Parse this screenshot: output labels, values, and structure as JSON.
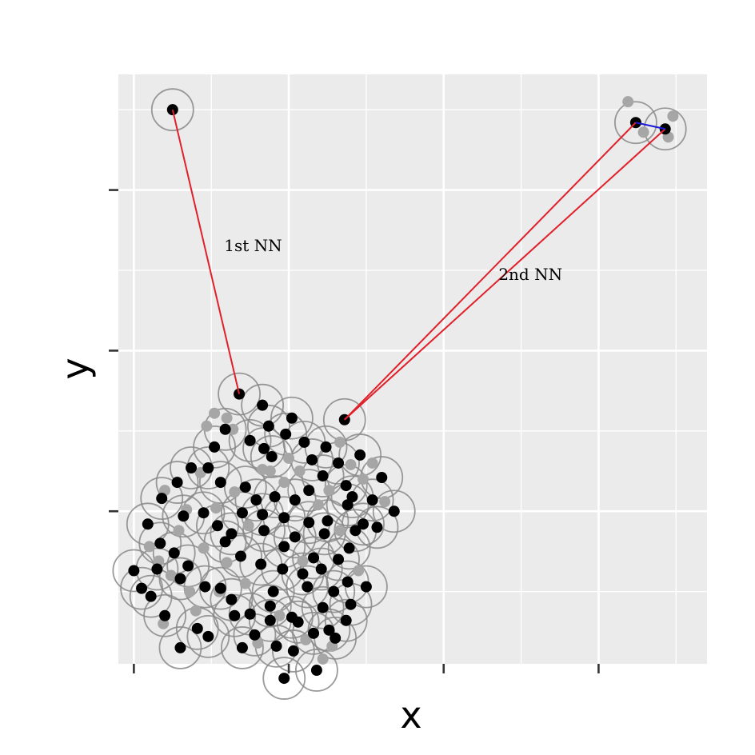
{
  "chart_data": {
    "type": "scatter",
    "xlabel": "x",
    "ylabel": "y",
    "xlim": [
      -0.1,
      3.7
    ],
    "ylim": [
      -0.95,
      2.72
    ],
    "grid": true,
    "legend": "none",
    "annotations": [
      {
        "label": "1st NN",
        "x": 0.77,
        "y": 1.62
      },
      {
        "label": "2nd NN",
        "x": 2.56,
        "y": 1.44
      }
    ],
    "highlight_links": [
      {
        "from": [
          0.25,
          2.5
        ],
        "to": [
          0.68,
          0.73
        ],
        "color": "#e0202a"
      },
      {
        "from": [
          1.36,
          0.57
        ],
        "to": [
          3.24,
          2.42
        ],
        "color": "#e0202a"
      },
      {
        "from": [
          1.36,
          0.57
        ],
        "to": [
          3.43,
          2.38
        ],
        "color": "#e0202a"
      },
      {
        "from": [
          3.24,
          2.42
        ],
        "to": [
          3.43,
          2.38
        ],
        "color": "#1a1ad6"
      }
    ],
    "series": [
      {
        "role": "black points",
        "points": [
          [
            0.25,
            2.5
          ],
          [
            0.68,
            0.73
          ],
          [
            0.83,
            0.66
          ],
          [
            1.02,
            0.58
          ],
          [
            0.87,
            0.53
          ],
          [
            0.98,
            0.48
          ],
          [
            1.36,
            0.57
          ],
          [
            0.52,
            0.4
          ],
          [
            0.59,
            0.51
          ],
          [
            0.75,
            0.44
          ],
          [
            0.84,
            0.39
          ],
          [
            0.89,
            0.34
          ],
          [
            1.1,
            0.43
          ],
          [
            1.24,
            0.4
          ],
          [
            1.15,
            0.32
          ],
          [
            1.32,
            0.3
          ],
          [
            1.46,
            0.35
          ],
          [
            1.6,
            0.21
          ],
          [
            1.68,
            0.0
          ],
          [
            0.18,
            0.08
          ],
          [
            0.28,
            0.18
          ],
          [
            0.37,
            0.27
          ],
          [
            0.48,
            0.27
          ],
          [
            0.56,
            0.18
          ],
          [
            0.72,
            0.15
          ],
          [
            0.79,
            0.07
          ],
          [
            0.91,
            0.09
          ],
          [
            1.04,
            0.07
          ],
          [
            1.13,
            0.13
          ],
          [
            1.22,
            0.22
          ],
          [
            1.37,
            0.16
          ],
          [
            1.41,
            0.09
          ],
          [
            1.54,
            0.07
          ],
          [
            0.09,
            -0.08
          ],
          [
            0.17,
            -0.2
          ],
          [
            0.32,
            -0.03
          ],
          [
            0.45,
            -0.01
          ],
          [
            0.54,
            -0.09
          ],
          [
            0.63,
            -0.14
          ],
          [
            0.7,
            -0.01
          ],
          [
            0.83,
            -0.02
          ],
          [
            0.97,
            -0.04
          ],
          [
            1.13,
            -0.07
          ],
          [
            1.25,
            -0.06
          ],
          [
            1.38,
            0.04
          ],
          [
            1.48,
            -0.08
          ],
          [
            1.57,
            -0.1
          ],
          [
            0.15,
            -0.36
          ],
          [
            0.26,
            -0.26
          ],
          [
            0.35,
            -0.34
          ],
          [
            0.59,
            -0.19
          ],
          [
            0.69,
            -0.28
          ],
          [
            0.84,
            -0.12
          ],
          [
            0.97,
            -0.22
          ],
          [
            1.04,
            -0.16
          ],
          [
            1.16,
            -0.29
          ],
          [
            1.23,
            -0.14
          ],
          [
            1.32,
            -0.3
          ],
          [
            1.39,
            -0.23
          ],
          [
            1.43,
            -0.12
          ],
          [
            0.0,
            -0.37
          ],
          [
            0.05,
            -0.48
          ],
          [
            0.11,
            -0.53
          ],
          [
            0.2,
            -0.65
          ],
          [
            0.3,
            -0.42
          ],
          [
            0.46,
            -0.47
          ],
          [
            0.56,
            -0.48
          ],
          [
            0.63,
            -0.55
          ],
          [
            0.75,
            -0.64
          ],
          [
            0.88,
            -0.59
          ],
          [
            1.02,
            -0.66
          ],
          [
            1.12,
            -0.47
          ],
          [
            1.22,
            -0.6
          ],
          [
            1.29,
            -0.5
          ],
          [
            1.37,
            -0.68
          ],
          [
            1.4,
            -0.58
          ],
          [
            0.41,
            -0.73
          ],
          [
            0.78,
            -0.77
          ],
          [
            0.92,
            -0.84
          ],
          [
            0.7,
            -0.85
          ],
          [
            0.97,
            -1.04
          ],
          [
            1.03,
            -0.87
          ],
          [
            1.16,
            -0.76
          ],
          [
            1.26,
            -0.74
          ],
          [
            1.38,
            -0.44
          ],
          [
            0.82,
            -0.33
          ],
          [
            0.96,
            -0.36
          ],
          [
            1.09,
            -0.39
          ],
          [
            0.9,
            -0.5
          ],
          [
            1.21,
            -0.36
          ],
          [
            0.65,
            -0.65
          ],
          [
            0.48,
            -0.78
          ],
          [
            1.5,
            -0.47
          ],
          [
            0.3,
            -0.85
          ],
          [
            1.18,
            -0.99
          ],
          [
            0.88,
            -0.68
          ],
          [
            1.3,
            -0.79
          ],
          [
            1.06,
            -0.69
          ],
          [
            3.24,
            2.42
          ],
          [
            3.43,
            2.38
          ]
        ]
      },
      {
        "role": "grey points",
        "points": [
          [
            3.19,
            2.55
          ],
          [
            3.29,
            2.36
          ],
          [
            3.48,
            2.46
          ],
          [
            3.45,
            2.33
          ],
          [
            0.94,
            -0.65
          ],
          [
            0.6,
            0.58
          ],
          [
            0.64,
            0.51
          ],
          [
            0.47,
            0.53
          ],
          [
            0.52,
            0.61
          ],
          [
            0.55,
            -0.5
          ],
          [
            0.43,
            0.24
          ],
          [
            0.24,
            -0.4
          ],
          [
            1.48,
            0.2
          ],
          [
            1.54,
            0.3
          ],
          [
            0.88,
            0.25
          ],
          [
            0.2,
            0.13
          ],
          [
            1.62,
            0.06
          ],
          [
            1.22,
            -0.92
          ],
          [
            0.34,
            0.01
          ],
          [
            0.19,
            -0.7
          ],
          [
            0.16,
            -0.31
          ],
          [
            0.4,
            -0.62
          ],
          [
            1.11,
            -0.8
          ],
          [
            1.09,
            -0.31
          ],
          [
            0.74,
            -0.09
          ],
          [
            0.65,
            0.12
          ],
          [
            1.07,
            0.25
          ],
          [
            1.33,
            -0.12
          ],
          [
            0.29,
            -0.12
          ],
          [
            0.97,
            0.18
          ],
          [
            0.83,
            0.26
          ],
          [
            1.19,
            0.04
          ],
          [
            0.36,
            -0.5
          ],
          [
            0.72,
            -0.45
          ],
          [
            0.45,
            -0.23
          ],
          [
            0.8,
            -0.82
          ],
          [
            1.45,
            -0.37
          ],
          [
            1.28,
            -0.84
          ],
          [
            1.33,
            0.43
          ],
          [
            0.6,
            -0.32
          ],
          [
            1.4,
            0.29
          ],
          [
            1.0,
            0.33
          ],
          [
            0.1,
            -0.22
          ],
          [
            0.53,
            0.02
          ],
          [
            1.26,
            0.13
          ]
        ]
      }
    ],
    "colors": {
      "panel": "#ebebeb",
      "grid_line": "#ffffff",
      "black_point": "#000000",
      "grey_point": "#a6a6a6",
      "circle": "#888888",
      "nn_link": "#e0202a",
      "short_link": "#1a1ad6"
    }
  }
}
